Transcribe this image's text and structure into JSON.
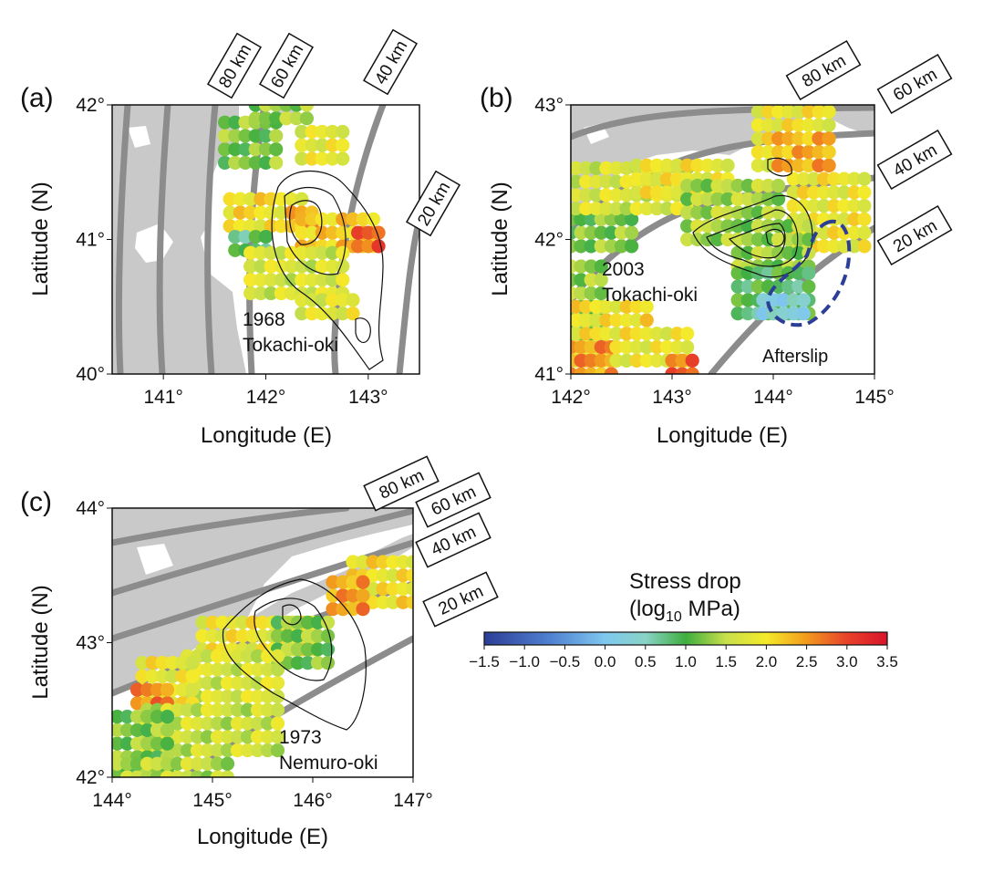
{
  "colorbar": {
    "title_line1": "Stress drop",
    "title_line2": "(log10  MPa)",
    "title_prefix": "(log",
    "title_sub": "10",
    "title_suffix": "  MPa)",
    "min": -1.5,
    "max": 3.5,
    "ticks": [
      "-1.5",
      "-1.0",
      "-0.5",
      "0.0",
      "0.5",
      "1.0",
      "1.5",
      "2.0",
      "2.5",
      "3.0",
      "3.5"
    ],
    "stops": [
      {
        "v": -1.5,
        "c": "#2c3e96"
      },
      {
        "v": -0.7,
        "c": "#4f7fd0"
      },
      {
        "v": 0.0,
        "c": "#7fc8ef"
      },
      {
        "v": 0.5,
        "c": "#8ad3c6"
      },
      {
        "v": 1.0,
        "c": "#3fae3f"
      },
      {
        "v": 1.5,
        "c": "#c8e04a"
      },
      {
        "v": 2.0,
        "c": "#f5ea2a"
      },
      {
        "v": 2.5,
        "c": "#f29a1e"
      },
      {
        "v": 3.0,
        "c": "#e8422a"
      },
      {
        "v": 3.5,
        "c": "#d8142a"
      }
    ]
  },
  "colors": {
    "land": "#c9c9c9",
    "contour_depth": "#8c8c8c",
    "slip_contour": "#111111",
    "afterslip": "#2c3e96"
  },
  "panels": [
    {
      "id": "a",
      "label": "(a)",
      "xlabel": "Longitude (E)",
      "ylabel": "Latitude (N)",
      "lon_range": [
        140.5,
        143.5
      ],
      "lat_range": [
        40.0,
        42.0
      ],
      "xticks": [
        {
          "v": 141,
          "t": "141°"
        },
        {
          "v": 142,
          "t": "142°"
        },
        {
          "v": 143,
          "t": "143°"
        }
      ],
      "yticks": [
        {
          "v": 40,
          "t": "40°"
        },
        {
          "v": 41,
          "t": "41°"
        },
        {
          "v": 42,
          "t": "42°"
        }
      ],
      "event_label": [
        "1968",
        "Tokachi-oki"
      ],
      "depth_labels": [
        "80 km",
        "60 km",
        "40 km",
        "20 km"
      ]
    },
    {
      "id": "b",
      "label": "(b)",
      "xlabel": "Longitude (E)",
      "ylabel": "Latitude (N)",
      "lon_range": [
        142.0,
        145.0
      ],
      "lat_range": [
        41.0,
        43.0
      ],
      "xticks": [
        {
          "v": 142,
          "t": "142°"
        },
        {
          "v": 143,
          "t": "143°"
        },
        {
          "v": 144,
          "t": "144°"
        },
        {
          "v": 145,
          "t": "145°"
        }
      ],
      "yticks": [
        {
          "v": 41,
          "t": "41°"
        },
        {
          "v": 42,
          "t": "42°"
        },
        {
          "v": 43,
          "t": "43°"
        }
      ],
      "event_label": [
        "2003",
        "Tokachi-oki"
      ],
      "afterslip_label": "Afterslip",
      "depth_labels": [
        "80 km",
        "60 km",
        "40 km",
        "20 km"
      ]
    },
    {
      "id": "c",
      "label": "(c)",
      "xlabel": "Longitude (E)",
      "ylabel": "Latitude (N)",
      "lon_range": [
        144.0,
        147.0
      ],
      "lat_range": [
        42.0,
        44.0
      ],
      "xticks": [
        {
          "v": 144,
          "t": "144°"
        },
        {
          "v": 145,
          "t": "145°"
        },
        {
          "v": 146,
          "t": "146°"
        },
        {
          "v": 147,
          "t": "147°"
        }
      ],
      "yticks": [
        {
          "v": 42,
          "t": "42°"
        },
        {
          "v": 43,
          "t": "43°"
        },
        {
          "v": 44,
          "t": "44°"
        }
      ],
      "event_label": [
        "1973",
        "Nemuro-oki"
      ],
      "depth_labels": [
        "80 km",
        "60 km",
        "40 km",
        "20 km"
      ]
    }
  ],
  "stress_regions": {
    "a": [
      {
        "lon": 141.85,
        "lat": 41.72,
        "cols": 6,
        "rows": 4,
        "v": 1.2
      },
      {
        "lon": 142.15,
        "lat": 41.95,
        "cols": 6,
        "rows": 2,
        "v": 1.3
      },
      {
        "lon": 142.55,
        "lat": 41.7,
        "cols": 5,
        "rows": 3,
        "v": 1.8
      },
      {
        "lon": 142.0,
        "lat": 41.2,
        "cols": 8,
        "rows": 3,
        "v": 2.0
      },
      {
        "lon": 142.35,
        "lat": 41.15,
        "cols": 3,
        "rows": 2,
        "v": 2.4
      },
      {
        "lon": 142.7,
        "lat": 41.05,
        "cols": 8,
        "rows": 3,
        "v": 2.2
      },
      {
        "lon": 143.0,
        "lat": 41.0,
        "cols": 3,
        "rows": 2,
        "v": 2.8
      },
      {
        "lon": 141.85,
        "lat": 40.97,
        "cols": 4,
        "rows": 2,
        "v": 0.8
      },
      {
        "lon": 142.3,
        "lat": 40.75,
        "cols": 10,
        "rows": 4,
        "v": 1.7
      },
      {
        "lon": 142.6,
        "lat": 40.5,
        "cols": 6,
        "rows": 2,
        "v": 1.8
      }
    ],
    "b": [
      {
        "lon": 142.2,
        "lat": 42.05,
        "cols": 9,
        "rows": 3,
        "v": 1.2
      },
      {
        "lon": 142.5,
        "lat": 42.38,
        "cols": 14,
        "rows": 4,
        "v": 1.7
      },
      {
        "lon": 143.1,
        "lat": 42.45,
        "cols": 10,
        "rows": 3,
        "v": 1.9
      },
      {
        "lon": 143.6,
        "lat": 42.2,
        "cols": 10,
        "rows": 5,
        "v": 1.4
      },
      {
        "lon": 144.2,
        "lat": 42.8,
        "cols": 8,
        "rows": 6,
        "v": 1.9
      },
      {
        "lon": 144.3,
        "lat": 42.65,
        "cols": 6,
        "rows": 3,
        "v": 2.4
      },
      {
        "lon": 144.55,
        "lat": 42.2,
        "cols": 8,
        "rows": 6,
        "v": 1.9
      },
      {
        "lon": 144.0,
        "lat": 41.95,
        "cols": 8,
        "rows": 4,
        "v": 1.3
      },
      {
        "lon": 144.0,
        "lat": 41.6,
        "cols": 8,
        "rows": 4,
        "v": 0.9
      },
      {
        "lon": 144.1,
        "lat": 41.5,
        "cols": 5,
        "rows": 2,
        "v": 0.3
      },
      {
        "lon": 142.15,
        "lat": 41.55,
        "cols": 4,
        "rows": 6,
        "v": 1.3
      },
      {
        "lon": 142.4,
        "lat": 41.3,
        "cols": 8,
        "rows": 5,
        "v": 2.0
      },
      {
        "lon": 142.2,
        "lat": 41.1,
        "cols": 5,
        "rows": 3,
        "v": 2.5
      },
      {
        "lon": 142.8,
        "lat": 41.2,
        "cols": 8,
        "rows": 3,
        "v": 1.9
      },
      {
        "lon": 143.1,
        "lat": 41.05,
        "cols": 3,
        "rows": 2,
        "v": 2.8
      }
    ],
    "c": [
      {
        "lon": 146.7,
        "lat": 43.45,
        "cols": 7,
        "rows": 4,
        "v": 2.0
      },
      {
        "lon": 146.35,
        "lat": 43.35,
        "cols": 4,
        "rows": 3,
        "v": 2.5
      },
      {
        "lon": 145.45,
        "lat": 43.05,
        "cols": 12,
        "rows": 3,
        "v": 1.9
      },
      {
        "lon": 145.9,
        "lat": 43.0,
        "cols": 6,
        "rows": 4,
        "v": 1.2
      },
      {
        "lon": 145.2,
        "lat": 42.75,
        "cols": 10,
        "rows": 4,
        "v": 1.7
      },
      {
        "lon": 144.55,
        "lat": 42.7,
        "cols": 6,
        "rows": 4,
        "v": 1.9
      },
      {
        "lon": 144.4,
        "lat": 42.6,
        "cols": 4,
        "rows": 2,
        "v": 2.6
      },
      {
        "lon": 145.0,
        "lat": 42.35,
        "cols": 14,
        "rows": 4,
        "v": 1.6
      },
      {
        "lon": 144.3,
        "lat": 42.25,
        "cols": 6,
        "rows": 5,
        "v": 1.2
      },
      {
        "lon": 144.6,
        "lat": 42.05,
        "cols": 12,
        "rows": 2,
        "v": 1.5
      }
    ]
  }
}
